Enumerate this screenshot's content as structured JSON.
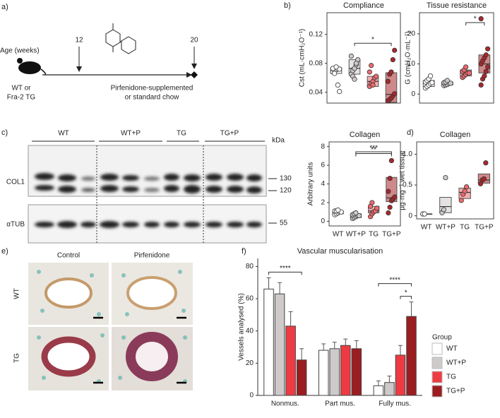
{
  "panel_labels": [
    "a)",
    "b)",
    "c)",
    "d)",
    "e)",
    "f)"
  ],
  "timeline": {
    "axis_label": "Age (weeks)",
    "start_week": "12",
    "end_week": "20",
    "mouse_line1": "WT or",
    "mouse_line2": "Fra-2 TG",
    "diet_line1": "Pirfenidone-supplemented",
    "diet_line2": "or standard chow"
  },
  "blot": {
    "lanes": [
      "WT",
      "WT+P",
      "TG",
      "TG+P"
    ],
    "unit": "kDa",
    "rows": [
      "COL1",
      "αTUB"
    ],
    "markers": [
      "130",
      "120",
      "55"
    ]
  },
  "histology": {
    "columns": [
      "Control",
      "Pirfenidone"
    ],
    "rows": [
      "WT",
      "TG"
    ]
  },
  "chart_data": [
    {
      "type": "box",
      "title": "Compliance",
      "ylabel": "Cst (mL·cmH₂O⁻¹)",
      "categories": [
        null,
        null,
        null,
        null
      ],
      "colors": [
        "#ffffff",
        "#cfcaca",
        "#ee6a6e",
        "#a8282c"
      ],
      "ylim": [
        0.025,
        0.15
      ],
      "yticks": [
        0.04,
        0.08,
        0.12
      ],
      "groups": [
        {
          "q1": 0.066,
          "median": 0.071,
          "q3": 0.074,
          "points": [
            0.068,
            0.07,
            0.071,
            0.072,
            0.072,
            0.073,
            0.066,
            0.075,
            0.05,
            0.041
          ]
        },
        {
          "q1": 0.065,
          "median": 0.073,
          "q3": 0.085,
          "points": [
            0.065,
            0.07,
            0.073,
            0.078,
            0.085,
            0.09,
            0.062,
            0.058,
            0.08
          ]
        },
        {
          "q1": 0.048,
          "median": 0.055,
          "q3": 0.062,
          "points": [
            0.048,
            0.052,
            0.055,
            0.06,
            0.062,
            0.068,
            0.077,
            0.05
          ]
        },
        {
          "q1": 0.026,
          "median": 0.037,
          "q3": 0.067,
          "points": [
            0.028,
            0.03,
            0.032,
            0.035,
            0.038,
            0.055,
            0.065,
            0.068,
            0.085,
            0.098
          ]
        }
      ],
      "brackets": [
        {
          "label": "*",
          "between": [
            1,
            3
          ]
        }
      ]
    },
    {
      "type": "box",
      "title": "Tissue resistance",
      "ylabel": "G (cmH₂O·mL⁻¹)",
      "categories": [
        null,
        null,
        null,
        null
      ],
      "colors": [
        "#ffffff",
        "#cfcaca",
        "#ee6a6e",
        "#a8282c"
      ],
      "ylim": [
        -3,
        27
      ],
      "yticks": [
        0,
        10,
        20
      ],
      "groups": [
        {
          "q1": 2.5,
          "median": 3.5,
          "q3": 4.5,
          "points": [
            2,
            2.5,
            3,
            3.5,
            3.8,
            4,
            4.5,
            5,
            6
          ]
        },
        {
          "q1": 3,
          "median": 3.5,
          "q3": 4,
          "points": [
            2.8,
            3,
            3.2,
            3.5,
            3.6,
            3.8,
            4,
            4.5
          ]
        },
        {
          "q1": 6,
          "median": 7,
          "q3": 8,
          "points": [
            5.5,
            6,
            6.5,
            7,
            7,
            7.5,
            8,
            9
          ]
        },
        {
          "q1": 7,
          "median": 10,
          "q3": 13,
          "points": [
            3,
            5,
            6,
            7.5,
            9,
            10,
            11,
            12,
            13,
            15,
            25
          ]
        }
      ],
      "brackets": [
        {
          "label": "*",
          "between": [
            2,
            3
          ]
        }
      ]
    },
    {
      "type": "box",
      "title": "Collagen",
      "ylabel": "Arbitrary units",
      "categories": [
        "WT",
        "WT+P",
        "TG",
        "TG+P"
      ],
      "colors": [
        "#ffffff",
        "#cfcaca",
        "#ee6a6e",
        "#a8282c"
      ],
      "ylim": [
        -0.5,
        8.5
      ],
      "yticks": [
        0,
        2,
        4,
        6,
        8
      ],
      "groups": [
        {
          "q1": 0.8,
          "median": 1,
          "q3": 1.1,
          "points": [
            0.7,
            0.8,
            0.9,
            1,
            1,
            1.1,
            1.1,
            1.2
          ]
        },
        {
          "q1": 0.4,
          "median": 0.6,
          "q3": 0.8,
          "points": [
            0.3,
            0.4,
            0.5,
            0.6,
            0.6,
            0.7,
            0.8,
            0.9
          ]
        },
        {
          "q1": 0.9,
          "median": 1.1,
          "q3": 1.6,
          "points": [
            0.5,
            0.8,
            1,
            1.1,
            1.4,
            1.6,
            2
          ]
        },
        {
          "q1": 2.1,
          "median": 2.5,
          "q3": 4.7,
          "points": [
            0.9,
            1.5,
            2.2,
            2.4,
            2.6,
            3.2,
            4.6,
            6.5
          ]
        }
      ],
      "brackets": [
        {
          "label": "**",
          "between": [
            1,
            3
          ]
        },
        {
          "label": "***",
          "between": [
            1,
            3
          ]
        }
      ]
    },
    {
      "type": "box",
      "title": "Collagen",
      "ylabel": "µg·mg⁻¹ wet tissue",
      "categories": [
        "WT",
        "WT+P",
        "TG",
        "TG+P"
      ],
      "colors": [
        "#ffffff",
        "#cfcaca",
        "#ee6a6e",
        "#a8282c"
      ],
      "ylim": [
        -0.05,
        1.2
      ],
      "yticks": [
        0,
        0.5,
        {
          "value": 1,
          "label": "1.0"
        }
      ],
      "groups": [
        {
          "q1": 0.03,
          "median": 0.03,
          "q3": 0.03,
          "points": [
            0.03,
            0.03
          ]
        },
        {
          "q1": 0.05,
          "median": 0.15,
          "q3": 0.3,
          "points": [
            0.05,
            0.1,
            0.62
          ]
        },
        {
          "q1": 0.28,
          "median": 0.38,
          "q3": 0.45,
          "points": [
            0.25,
            0.35,
            0.4,
            0.47
          ]
        },
        {
          "q1": 0.53,
          "median": 0.58,
          "q3": 0.68,
          "points": [
            0.52,
            0.58,
            0.6,
            0.86
          ]
        }
      ],
      "brackets": []
    },
    {
      "type": "bar",
      "title": "Vascular muscularisation",
      "ylabel": "Vessels analysed (%)",
      "categories": [
        "Nonmus.",
        "Part mus.",
        "Fully mus."
      ],
      "legend_title": "Group",
      "ylim": [
        0,
        85
      ],
      "yticks": [
        0,
        20,
        40,
        60,
        80
      ],
      "series": [
        {
          "name": "WT",
          "color": "#ffffff",
          "values": [
            66,
            28,
            6
          ],
          "errors": [
            7,
            4,
            3
          ]
        },
        {
          "name": "WT+P",
          "color": "#cfcaca",
          "values": [
            63,
            29,
            8
          ],
          "errors": [
            7,
            4,
            4
          ]
        },
        {
          "name": "TG",
          "color": "#ee3b43",
          "values": [
            43,
            31,
            25
          ],
          "errors": [
            9,
            4,
            6
          ]
        },
        {
          "name": "TG+P",
          "color": "#9b1d20",
          "values": [
            22,
            29,
            49
          ],
          "errors": [
            7,
            5,
            9
          ]
        }
      ],
      "brackets": [
        {
          "label": "****",
          "category": 0,
          "between": [
            0,
            3
          ]
        },
        {
          "label": "*",
          "category": 2,
          "between": [
            2,
            3
          ]
        },
        {
          "label": "****",
          "category": 2,
          "between": [
            0,
            3
          ]
        }
      ]
    }
  ]
}
